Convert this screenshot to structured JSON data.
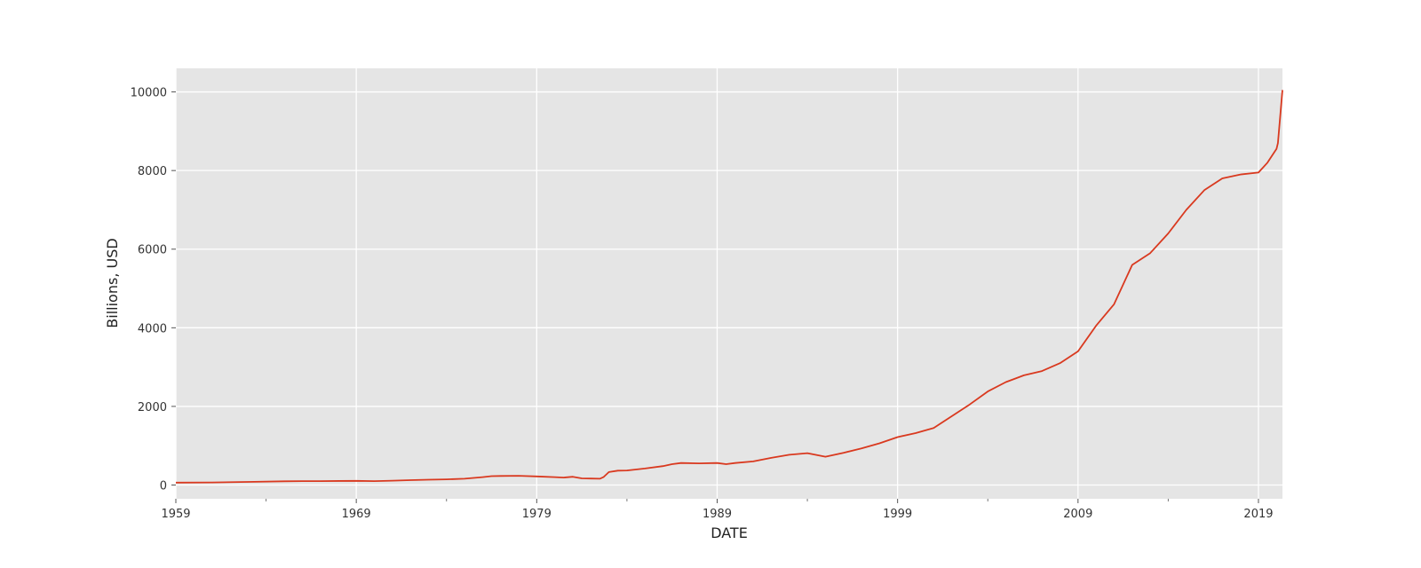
{
  "chart_data": {
    "type": "line",
    "title": "",
    "xlabel": "DATE",
    "ylabel": "Billions, USD",
    "xlim": [
      1959.0,
      2020.33
    ],
    "ylim": [
      -350,
      10600
    ],
    "x_ticks": [
      1959,
      1969,
      1979,
      1989,
      1999,
      2009,
      2019
    ],
    "y_ticks": [
      0,
      2000,
      4000,
      6000,
      8000,
      10000
    ],
    "grid": true,
    "legend": "none",
    "colors": {
      "line": "#d9391f",
      "plot_bg": "#e5e5e5",
      "grid": "#ffffff"
    },
    "series": [
      {
        "x": [
          1959,
          1961,
          1963,
          1965,
          1966,
          1967,
          1969,
          1970,
          1971,
          1972,
          1973,
          1974,
          1975,
          1976,
          1976.5,
          1977,
          1978,
          1979,
          1980,
          1980.5,
          1981,
          1981.5,
          1982,
          1982.5,
          1982.7,
          1983,
          1983.5,
          1984,
          1985,
          1986,
          1986.5,
          1987,
          1988,
          1989,
          1989.5,
          1990,
          1991,
          1992,
          1993,
          1994,
          1995,
          1996,
          1997,
          1998,
          1999,
          2000,
          2001,
          2002,
          2003,
          2004,
          2005,
          2006,
          2007,
          2008,
          2009,
          2010,
          2011,
          2012,
          2013,
          2014,
          2015,
          2016,
          2017,
          2018,
          2019,
          2019.5,
          2020,
          2020.08,
          2020.33
        ],
        "values": [
          60,
          65,
          80,
          95,
          100,
          100,
          105,
          100,
          110,
          125,
          135,
          145,
          160,
          200,
          225,
          230,
          235,
          220,
          200,
          190,
          210,
          170,
          165,
          160,
          200,
          330,
          365,
          370,
          420,
          480,
          530,
          560,
          550,
          560,
          530,
          560,
          600,
          690,
          770,
          810,
          720,
          820,
          930,
          1060,
          1220,
          1320,
          1450,
          1750,
          2050,
          2380,
          2620,
          2790,
          2900,
          3100,
          3400,
          4050,
          4600,
          5600,
          5900,
          6400,
          7000,
          7500,
          7800,
          7900,
          7950,
          8200,
          8550,
          8700,
          10050
        ]
      }
    ]
  }
}
